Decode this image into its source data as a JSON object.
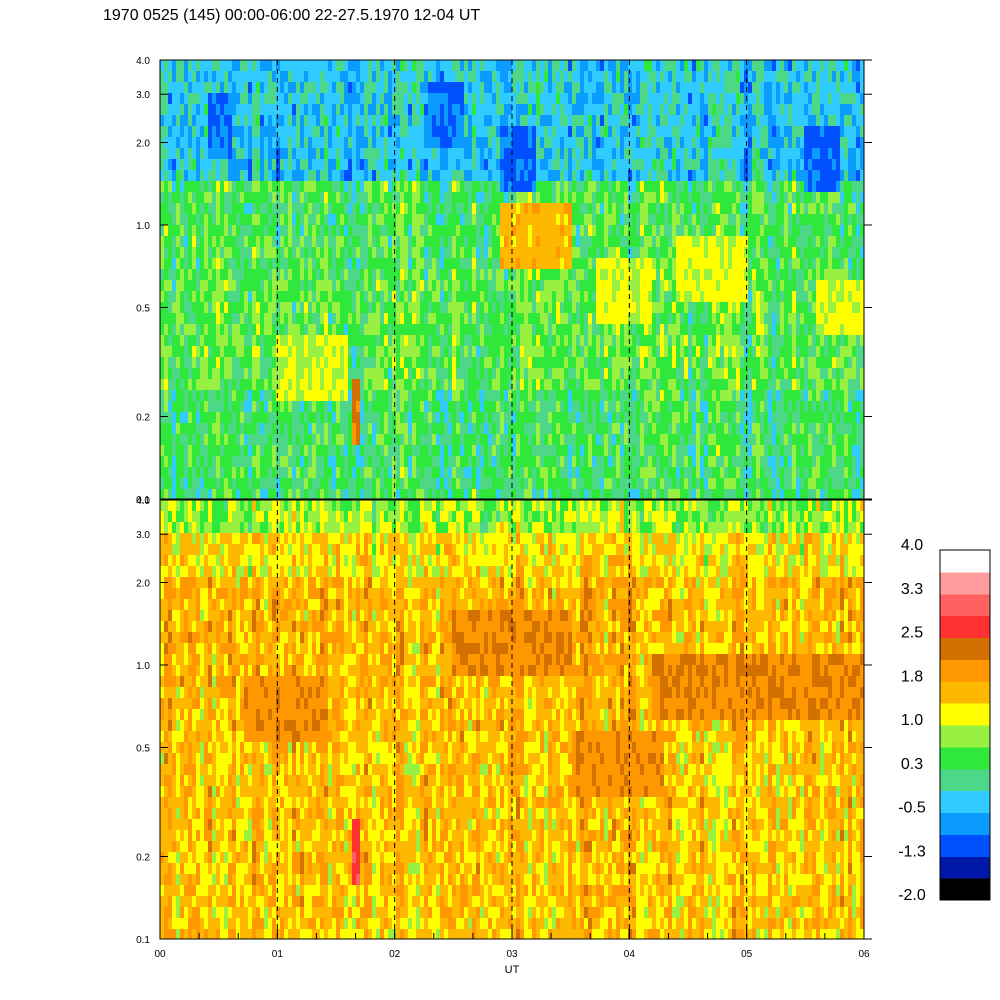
{
  "chart_data": {
    "type": "heatmap",
    "title": "1970 0525 (145) 00:00-06:00 22-27.5.1970  12-04 UT",
    "xlabel": "UT",
    "x_tick_labels": [
      "00",
      "01",
      "02",
      "03",
      "04",
      "05",
      "06"
    ],
    "x_range": [
      0,
      6
    ],
    "x_minor_ticks_per_hour": 3,
    "panels": [
      {
        "name": "upper",
        "y_scale": "log",
        "y_range": [
          0.1,
          4.0
        ],
        "y_tick_labels": [
          "0.1",
          "0.2",
          "0.5",
          "1.0",
          "2.0",
          "3.0",
          "4.0"
        ],
        "y_ticks": [
          0.1,
          0.2,
          0.5,
          1.0,
          2.0,
          3.0,
          4.0
        ],
        "dominant_levels": "green / light green with cyan-blue patches above 1.5, yellow features 0.4-1.3",
        "base_level_bands": [
          {
            "y_low": 0.1,
            "y_high": 0.25,
            "level": 0.3
          },
          {
            "y_low": 0.25,
            "y_high": 0.7,
            "level": 0.5
          },
          {
            "y_low": 0.7,
            "y_high": 1.5,
            "level": 0.4
          },
          {
            "y_low": 1.5,
            "y_high": 4.0,
            "level": -0.3
          }
        ],
        "features": [
          {
            "x_start": 2.9,
            "x_end": 3.5,
            "y_center": 0.95,
            "level": 1.6
          },
          {
            "x_start": 3.7,
            "x_end": 4.2,
            "y_center": 0.55,
            "level": 1.1
          },
          {
            "x_start": 4.4,
            "x_end": 5.0,
            "y_center": 0.7,
            "level": 1.1
          },
          {
            "x_start": 5.6,
            "x_end": 6.0,
            "y_center": 0.5,
            "level": 1.1
          },
          {
            "x_start": 1.0,
            "x_end": 1.6,
            "y_center": 0.3,
            "level": 1.0
          },
          {
            "x_start": 1.63,
            "x_end": 1.7,
            "y_center": 0.2,
            "level": 2.2
          },
          {
            "x_start": 0.4,
            "x_end": 0.6,
            "y_center": 2.2,
            "level": -0.9
          },
          {
            "x_start": 2.3,
            "x_end": 2.6,
            "y_center": 2.6,
            "level": -0.9
          },
          {
            "x_start": 2.9,
            "x_end": 3.2,
            "y_center": 1.8,
            "level": -1.0
          },
          {
            "x_start": 5.5,
            "x_end": 5.8,
            "y_center": 1.8,
            "level": -1.0
          }
        ]
      },
      {
        "name": "lower",
        "y_scale": "log",
        "y_range": [
          0.1,
          4.0
        ],
        "y_tick_labels": [
          "0.1",
          "0.2",
          "0.5",
          "1.0",
          "2.0",
          "3.0",
          "4.0"
        ],
        "y_ticks": [
          0.1,
          0.2,
          0.5,
          1.0,
          2.0,
          3.0,
          4.0
        ],
        "dominant_levels": "orange / yellow with dark orange bands near 1.0 and red streak near 01:40",
        "base_level_bands": [
          {
            "y_low": 0.1,
            "y_high": 0.5,
            "level": 1.5
          },
          {
            "y_low": 0.5,
            "y_high": 2.0,
            "level": 1.6
          },
          {
            "y_low": 2.0,
            "y_high": 3.0,
            "level": 1.3
          },
          {
            "y_low": 3.0,
            "y_high": 4.0,
            "level": 0.8
          }
        ],
        "features": [
          {
            "x_start": 2.5,
            "x_end": 3.5,
            "y_center": 1.2,
            "level": 2.1
          },
          {
            "x_start": 4.2,
            "x_end": 6.0,
            "y_center": 0.8,
            "level": 2.1
          },
          {
            "x_start": 3.5,
            "x_end": 4.3,
            "y_center": 0.45,
            "level": 2.0
          },
          {
            "x_start": 1.63,
            "x_end": 1.7,
            "y_center": 0.2,
            "level": 2.7
          },
          {
            "x_start": 0.7,
            "x_end": 1.4,
            "y_center": 0.7,
            "level": 2.0
          }
        ]
      }
    ],
    "dashed_vertical_lines_x": [
      1,
      2,
      3,
      4,
      5
    ],
    "colorbar": {
      "labels": [
        "4.0",
        "3.3",
        "2.5",
        "1.8",
        "1.0",
        "0.3",
        "-0.5",
        "-1.3",
        "-2.0"
      ],
      "range": [
        -2.0,
        4.0
      ],
      "colors_bottom_to_top": [
        "#000000",
        "#0018a8",
        "#0050ff",
        "#0c9cff",
        "#30ccff",
        "#4cd888",
        "#30e83c",
        "#98f040",
        "#ffff00",
        "#ffb800",
        "#ff9800",
        "#d47000",
        "#ff3030",
        "#ff6060",
        "#ff9c9c",
        "#ffffff"
      ]
    }
  }
}
